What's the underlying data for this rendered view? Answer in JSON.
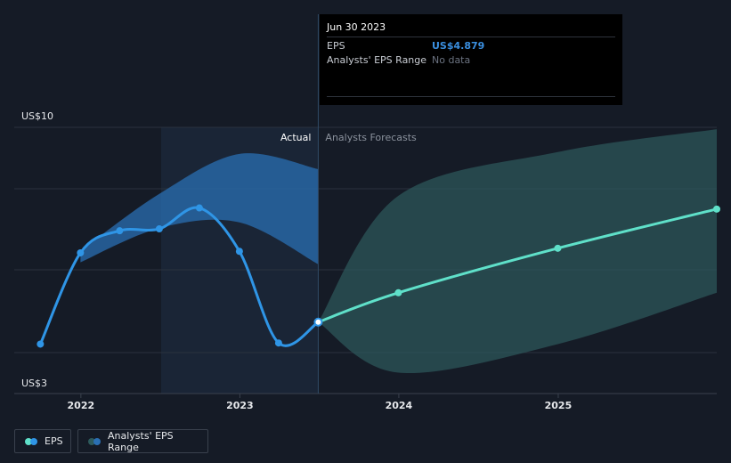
{
  "tooltip": {
    "date": "Jun 30 2023",
    "rows": [
      {
        "label": "EPS",
        "value": "US$4.879",
        "color": "#3a8fe0"
      },
      {
        "label": "Analysts' EPS Range",
        "value": "No data",
        "color": "#6b7280"
      }
    ]
  },
  "legend": {
    "eps_label": "EPS",
    "range_label": "Analysts' EPS Range"
  },
  "chart_data": {
    "type": "line",
    "y_top_label": "US$10",
    "y_bottom_label": "US$3",
    "ylim": [
      3,
      10
    ],
    "xlim": [
      "2021-08-01",
      "2025-12-31"
    ],
    "x_ticks": [
      {
        "date": "2022-01-01",
        "label": "2022"
      },
      {
        "date": "2023-01-01",
        "label": "2023"
      },
      {
        "date": "2024-01-01",
        "label": "2024"
      },
      {
        "date": "2025-01-01",
        "label": "2025"
      }
    ],
    "divider_date": "2023-06-30",
    "actual_label": "Actual",
    "forecast_label": "Analysts Forecasts",
    "series": [
      {
        "name": "EPS",
        "color": "#2f95e6",
        "points": [
          {
            "date": "2021-09-30",
            "value": 4.3
          },
          {
            "date": "2021-12-31",
            "value": 6.7
          },
          {
            "date": "2022-03-31",
            "value": 7.28
          },
          {
            "date": "2022-06-30",
            "value": 7.33
          },
          {
            "date": "2022-09-30",
            "value": 7.88
          },
          {
            "date": "2022-12-31",
            "value": 6.74
          },
          {
            "date": "2023-03-31",
            "value": 4.33
          },
          {
            "date": "2023-06-30",
            "value": 4.879
          }
        ]
      },
      {
        "name": "EPS forecast",
        "color": "#5fe0c9",
        "points": [
          {
            "date": "2023-06-30",
            "value": 4.879
          },
          {
            "date": "2023-12-31",
            "value": 5.65
          },
          {
            "date": "2024-12-31",
            "value": 6.82
          },
          {
            "date": "2025-12-31",
            "value": 7.85
          }
        ]
      }
    ],
    "ranges": [
      {
        "name": "Analysts' EPS Range (actual period)",
        "color": "#2a6fb3",
        "points": [
          {
            "date": "2021-12-31",
            "low": 6.45,
            "high": 6.75
          },
          {
            "date": "2022-06-30",
            "low": 7.35,
            "high": 8.25
          },
          {
            "date": "2022-12-31",
            "low": 7.5,
            "high": 9.3
          },
          {
            "date": "2023-06-30",
            "low": 6.4,
            "high": 8.9
          }
        ]
      },
      {
        "name": "Analysts' EPS Range (forecast)",
        "color": "#2d5a5c",
        "points": [
          {
            "date": "2023-06-30",
            "low": 4.879,
            "high": 4.879
          },
          {
            "date": "2023-12-31",
            "low": 3.55,
            "high": 8.2
          },
          {
            "date": "2024-12-31",
            "low": 4.3,
            "high": 9.35
          },
          {
            "date": "2025-12-31",
            "low": 5.65,
            "high": 9.95
          }
        ]
      }
    ]
  }
}
